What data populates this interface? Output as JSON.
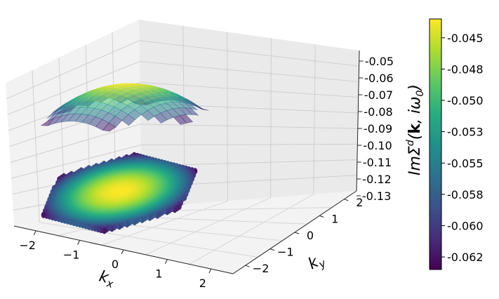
{
  "chart_data": {
    "type": "surface3d",
    "title": "",
    "xlabel": "k_x",
    "ylabel": "k_y",
    "zlabel": "ImΣ^d(k, iω_0)",
    "x_ticks": [
      "−2",
      "−1",
      "0",
      "1",
      "2"
    ],
    "y_ticks": [
      "−2",
      "−1",
      "0",
      "1",
      "2"
    ],
    "z_ticks": [
      "-0.05",
      "-0.06",
      "-0.07",
      "-0.08",
      "-0.09",
      "-0.10",
      "-0.11",
      "-0.12",
      "-0.13"
    ],
    "xlim": [
      -2.4,
      2.4
    ],
    "ylim": [
      -2.4,
      2.4
    ],
    "zlim": [
      -0.13,
      -0.05
    ],
    "surface": {
      "domain": "hexagonal Brillouin zone",
      "value_center": -0.0435,
      "value_edge": -0.0635,
      "value_range": [
        -0.0635,
        -0.0435
      ]
    },
    "projection_scatter": {
      "domain": "hexagonal Brillouin zone",
      "marker": "circle"
    },
    "colorbar": {
      "colormap": "viridis",
      "range": [
        -0.0635,
        -0.0435
      ],
      "ticks": [
        "-0.045",
        "-0.048",
        "-0.050",
        "-0.053",
        "-0.055",
        "-0.058",
        "-0.060",
        "-0.062"
      ],
      "tick_values": [
        -0.045,
        -0.0475,
        -0.05,
        -0.0525,
        -0.055,
        -0.0575,
        -0.06,
        -0.0625
      ]
    },
    "grid": true,
    "pane_color": "#f2f2f2"
  }
}
